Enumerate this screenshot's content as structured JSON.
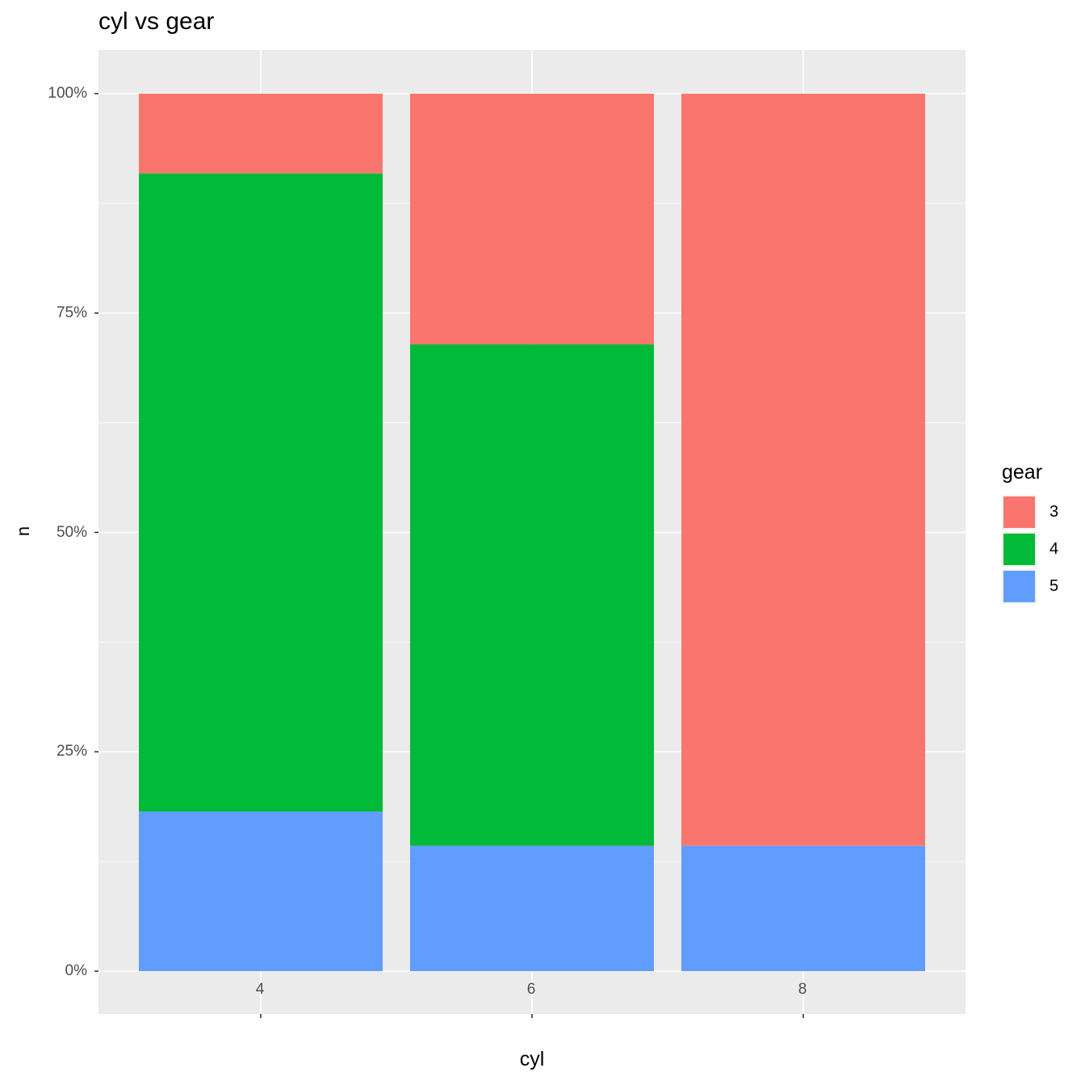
{
  "chart_data": {
    "type": "bar",
    "stacked": "fill",
    "title": "cyl vs gear",
    "xlabel": "cyl",
    "ylabel": "n",
    "categories": [
      "4",
      "6",
      "8"
    ],
    "series": [
      {
        "name": "3",
        "color": "#F8766D",
        "values": [
          9.09,
          28.57,
          85.71
        ]
      },
      {
        "name": "4",
        "color": "#00BA38",
        "values": [
          72.73,
          57.14,
          0
        ]
      },
      {
        "name": "5",
        "color": "#619CFF",
        "values": [
          18.18,
          14.29,
          14.29
        ]
      }
    ],
    "ylim": [
      0,
      100
    ],
    "yticks": [
      "0%",
      "25%",
      "50%",
      "75%",
      "100%"
    ],
    "grid": true,
    "legend": {
      "title": "gear",
      "position": "right",
      "entries": [
        "3",
        "4",
        "5"
      ]
    },
    "panel_background": "#EBEBEB",
    "grid_color": "#FFFFFF"
  }
}
